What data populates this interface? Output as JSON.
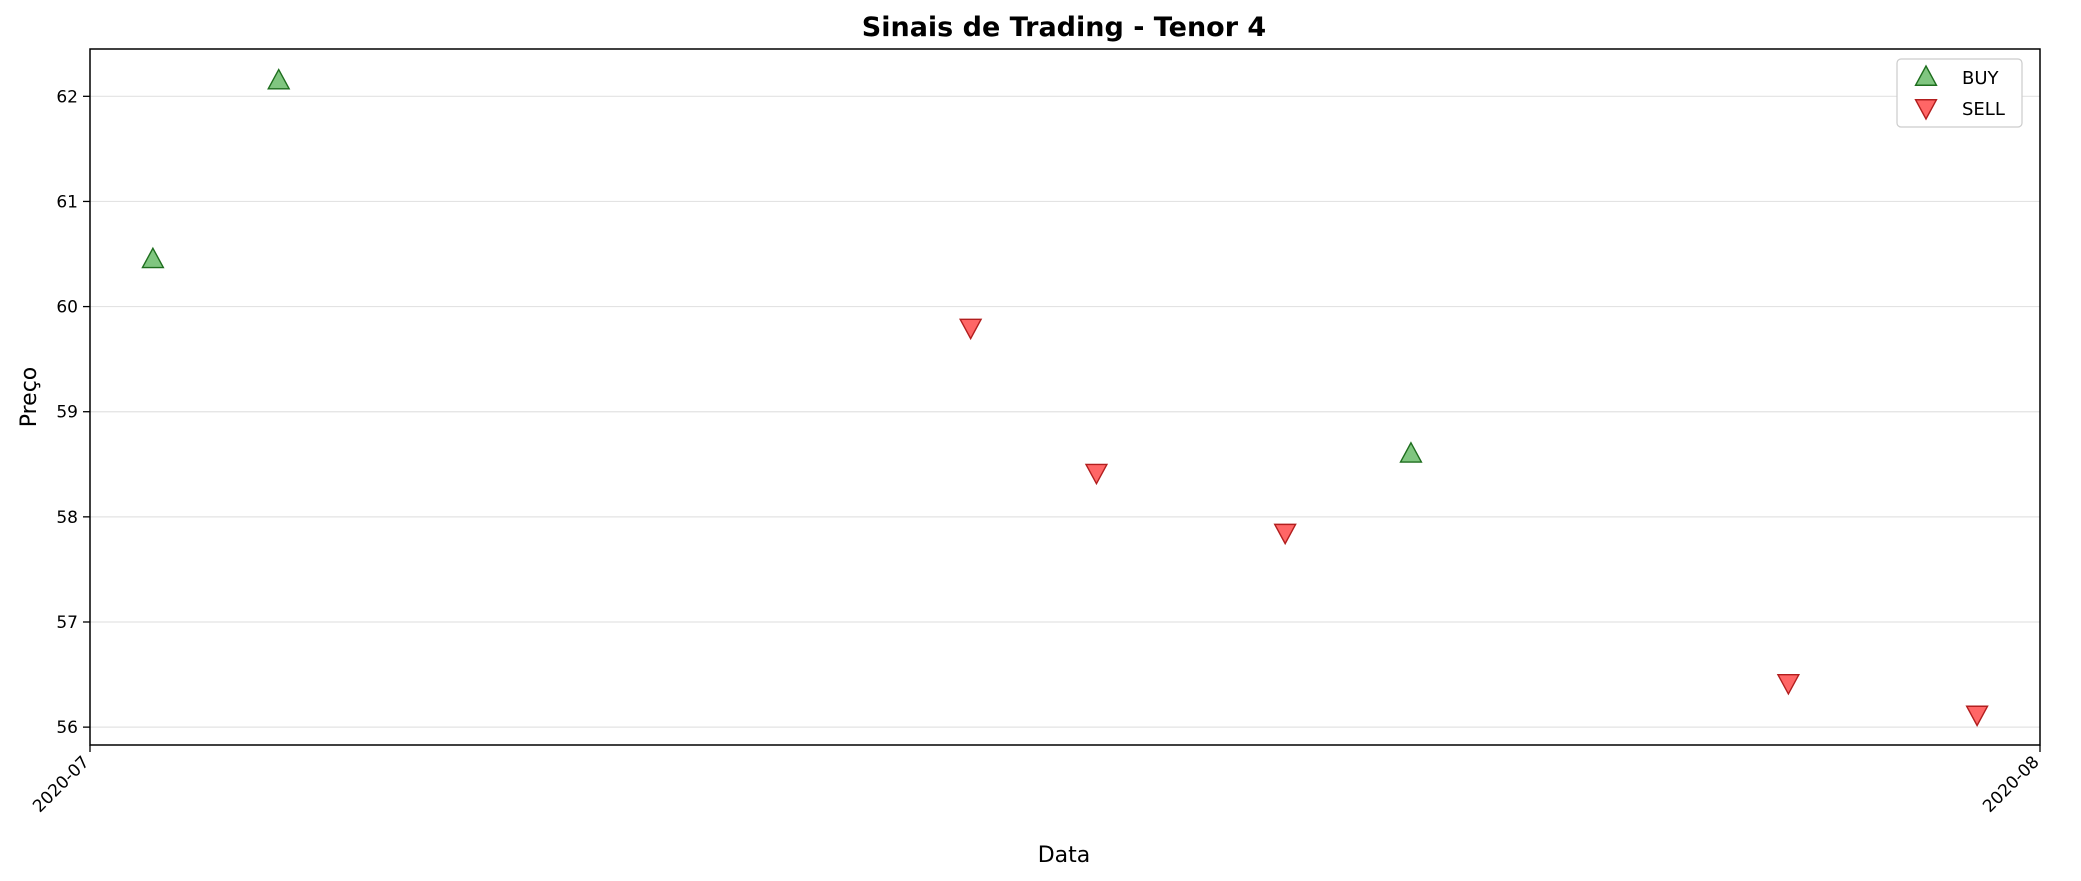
{
  "chart_data": {
    "type": "scatter",
    "title": "Sinais de Trading - Tenor 4",
    "xlabel": "Data",
    "ylabel": "Preço",
    "x_axis_type": "date",
    "xlim": [
      "2020-07-01",
      "2020-08-01"
    ],
    "x_ticks": [
      "2020-07",
      "2020-08"
    ],
    "ylim": [
      55.83,
      62.45
    ],
    "y_ticks": [
      56,
      57,
      58,
      59,
      60,
      61,
      62
    ],
    "grid": "y-axis only",
    "legend_position": "top-right",
    "series": [
      {
        "name": "BUY",
        "marker": "triangle-up",
        "color": "#2ca02c",
        "points": [
          {
            "x": "2020-07-02",
            "y": 60.45
          },
          {
            "x": "2020-07-04",
            "y": 62.15
          },
          {
            "x": "2020-07-22",
            "y": 58.6
          }
        ]
      },
      {
        "name": "SELL",
        "marker": "triangle-down",
        "color": "#ff0000",
        "points": [
          {
            "x": "2020-07-15",
            "y": 59.8
          },
          {
            "x": "2020-07-17",
            "y": 58.42
          },
          {
            "x": "2020-07-20",
            "y": 57.85
          },
          {
            "x": "2020-07-28",
            "y": 56.42
          },
          {
            "x": "2020-07-31",
            "y": 56.12
          }
        ]
      }
    ]
  }
}
